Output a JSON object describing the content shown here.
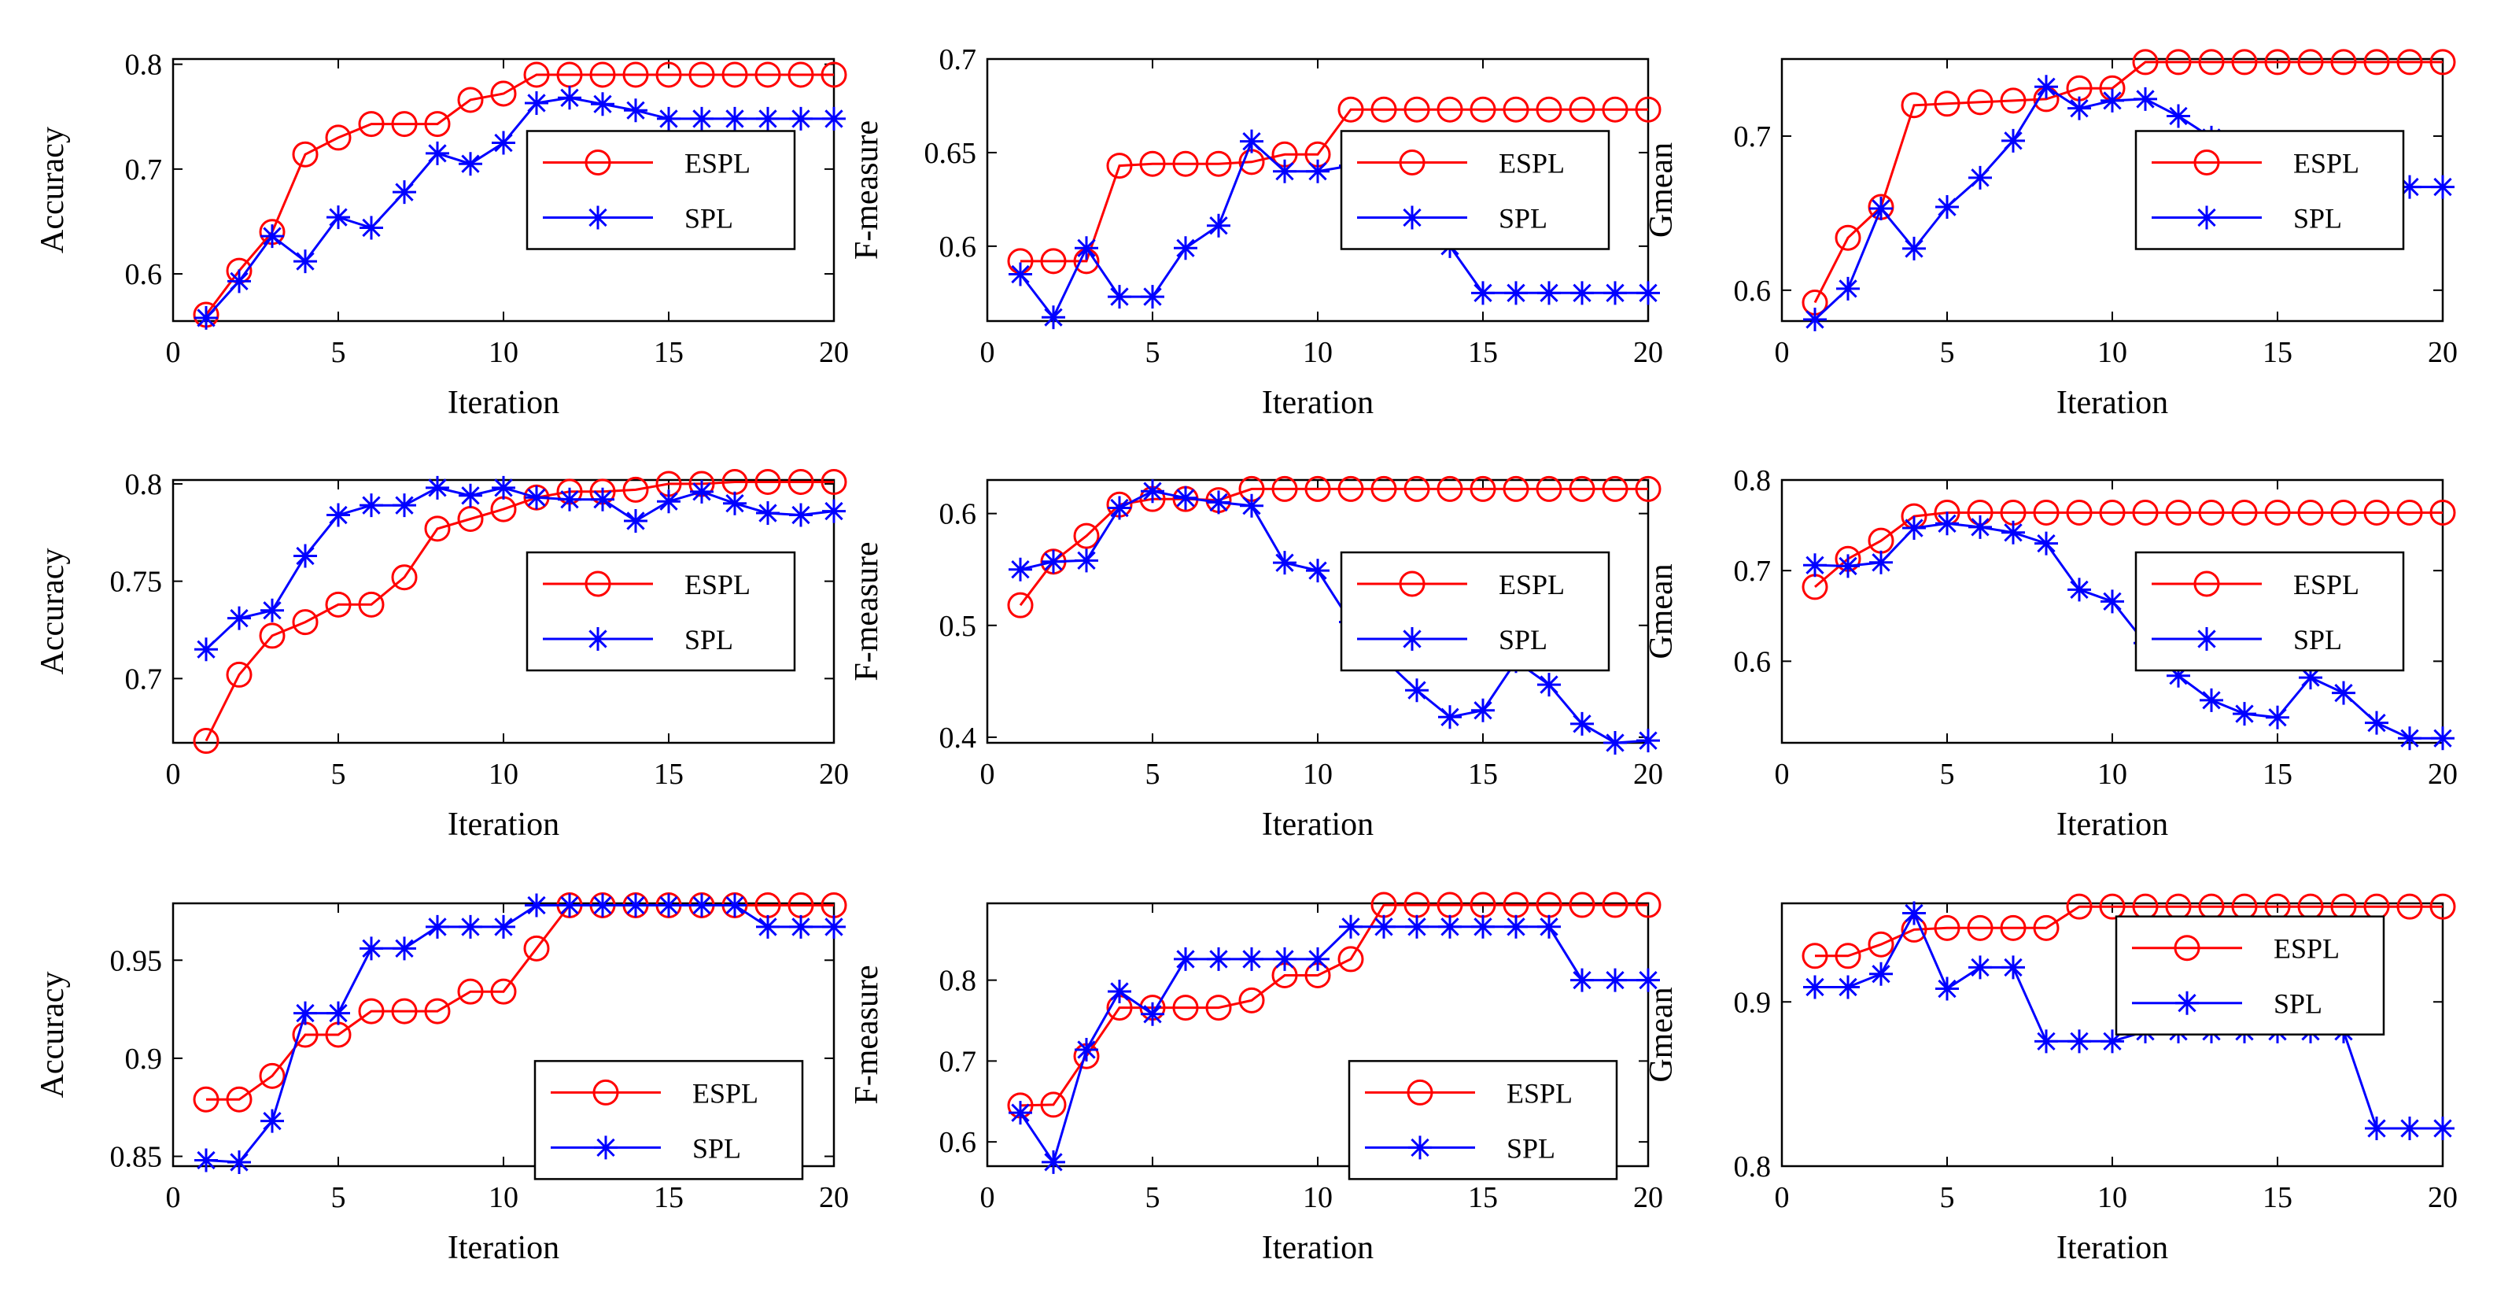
{
  "colors": {
    "espl": "#ff0000",
    "spl": "#0000ff",
    "axis": "#000000"
  },
  "chart_data": [
    {
      "type": "line",
      "row": 1,
      "col": 1,
      "xlabel": "Iteration",
      "ylabel": "Accuracy",
      "xlim": [
        0,
        20
      ],
      "ylim": [
        0.555,
        0.805
      ],
      "xticks": [
        "0",
        "5",
        "10",
        "15",
        "20"
      ],
      "yticks": [
        "0.6",
        "0.7",
        "0.8"
      ],
      "xtick_values": [
        0,
        5,
        10,
        15,
        20
      ],
      "ytick_values": [
        0.6,
        0.7,
        0.8
      ],
      "legend": "center-right",
      "x": [
        1,
        2,
        3,
        4,
        5,
        6,
        7,
        8,
        9,
        10,
        11,
        12,
        13,
        14,
        15,
        16,
        17,
        18,
        19,
        20
      ],
      "series": [
        {
          "name": "ESPL",
          "marker": "circle",
          "values": [
            0.561,
            0.603,
            0.64,
            0.714,
            0.73,
            0.743,
            0.743,
            0.743,
            0.766,
            0.772,
            0.79,
            0.79,
            0.79,
            0.79,
            0.79,
            0.79,
            0.79,
            0.79,
            0.79,
            0.79
          ]
        },
        {
          "name": "SPL",
          "marker": "star",
          "values": [
            0.558,
            0.593,
            0.636,
            0.612,
            0.654,
            0.644,
            0.678,
            0.715,
            0.705,
            0.725,
            0.763,
            0.768,
            0.762,
            0.756,
            0.748,
            0.748,
            0.748,
            0.748,
            0.748,
            0.748
          ]
        }
      ]
    },
    {
      "type": "line",
      "row": 1,
      "col": 2,
      "xlabel": "Iteration",
      "ylabel": "F-measure",
      "xlim": [
        0,
        20
      ],
      "ylim": [
        0.56,
        0.7
      ],
      "xticks": [
        "0",
        "5",
        "10",
        "15",
        "20"
      ],
      "yticks": [
        "0.6",
        "0.65",
        "0.7"
      ],
      "xtick_values": [
        0,
        5,
        10,
        15,
        20
      ],
      "ytick_values": [
        0.6,
        0.65,
        0.7
      ],
      "legend": "center-right",
      "x": [
        1,
        2,
        3,
        4,
        5,
        6,
        7,
        8,
        9,
        10,
        11,
        12,
        13,
        14,
        15,
        16,
        17,
        18,
        19,
        20
      ],
      "series": [
        {
          "name": "ESPL",
          "marker": "circle",
          "values": [
            0.592,
            0.592,
            0.592,
            0.643,
            0.644,
            0.644,
            0.644,
            0.645,
            0.649,
            0.649,
            0.673,
            0.673,
            0.673,
            0.673,
            0.673,
            0.673,
            0.673,
            0.673,
            0.673,
            0.673
          ]
        },
        {
          "name": "SPL",
          "marker": "star",
          "values": [
            0.585,
            0.562,
            0.599,
            0.573,
            0.573,
            0.599,
            0.611,
            0.656,
            0.64,
            0.64,
            0.643,
            0.63,
            0.623,
            0.6,
            0.575,
            0.575,
            0.575,
            0.575,
            0.575,
            0.575
          ]
        }
      ]
    },
    {
      "type": "line",
      "row": 1,
      "col": 3,
      "xlabel": "Iteration",
      "ylabel": "Gmean",
      "xlim": [
        0,
        20
      ],
      "ylim": [
        0.58,
        0.75
      ],
      "xticks": [
        "0",
        "5",
        "10",
        "15",
        "20"
      ],
      "yticks": [
        "0.6",
        "0.7"
      ],
      "xtick_values": [
        0,
        5,
        10,
        15,
        20
      ],
      "ytick_values": [
        0.6,
        0.7
      ],
      "legend": "center-right",
      "x": [
        1,
        2,
        3,
        4,
        5,
        6,
        7,
        8,
        9,
        10,
        11,
        12,
        13,
        14,
        15,
        16,
        17,
        18,
        19,
        20
      ],
      "series": [
        {
          "name": "ESPL",
          "marker": "circle",
          "values": [
            0.592,
            0.634,
            0.654,
            0.72,
            0.721,
            0.722,
            0.723,
            0.724,
            0.731,
            0.731,
            0.748,
            0.748,
            0.748,
            0.748,
            0.748,
            0.748,
            0.748,
            0.748,
            0.748,
            0.748
          ]
        },
        {
          "name": "SPL",
          "marker": "star",
          "values": [
            0.581,
            0.601,
            0.653,
            0.627,
            0.654,
            0.673,
            0.697,
            0.732,
            0.718,
            0.723,
            0.724,
            0.713,
            0.699,
            0.691,
            0.667,
            0.667,
            0.667,
            0.667,
            0.667,
            0.667
          ]
        }
      ]
    },
    {
      "type": "line",
      "row": 2,
      "col": 1,
      "xlabel": "Iteration",
      "ylabel": "Accuracy",
      "xlim": [
        0,
        20
      ],
      "ylim": [
        0.667,
        0.802
      ],
      "xticks": [
        "0",
        "5",
        "10",
        "15",
        "20"
      ],
      "yticks": [
        "0.7",
        "0.75",
        "0.8"
      ],
      "xtick_values": [
        0,
        5,
        10,
        15,
        20
      ],
      "ytick_values": [
        0.7,
        0.75,
        0.8
      ],
      "legend": "center-right",
      "x": [
        1,
        2,
        3,
        4,
        5,
        6,
        7,
        8,
        9,
        10,
        11,
        12,
        13,
        14,
        15,
        16,
        17,
        18,
        19,
        20
      ],
      "series": [
        {
          "name": "ESPL",
          "marker": "circle",
          "values": [
            0.668,
            0.702,
            0.722,
            0.729,
            0.738,
            0.738,
            0.752,
            0.777,
            0.782,
            0.787,
            0.793,
            0.796,
            0.796,
            0.797,
            0.8,
            0.8,
            0.801,
            0.801,
            0.801,
            0.801
          ]
        },
        {
          "name": "SPL",
          "marker": "star",
          "values": [
            0.715,
            0.731,
            0.735,
            0.763,
            0.784,
            0.789,
            0.789,
            0.798,
            0.794,
            0.798,
            0.793,
            0.792,
            0.792,
            0.781,
            0.791,
            0.796,
            0.79,
            0.785,
            0.784,
            0.786
          ]
        }
      ]
    },
    {
      "type": "line",
      "row": 2,
      "col": 2,
      "xlabel": "Iteration",
      "ylabel": "F-measure",
      "xlim": [
        0,
        20
      ],
      "ylim": [
        0.395,
        0.63
      ],
      "xticks": [
        "0",
        "5",
        "10",
        "15",
        "20"
      ],
      "yticks": [
        "0.4",
        "0.5",
        "0.6"
      ],
      "xtick_values": [
        0,
        5,
        10,
        15,
        20
      ],
      "ytick_values": [
        0.4,
        0.5,
        0.6
      ],
      "legend": "center-right",
      "x": [
        1,
        2,
        3,
        4,
        5,
        6,
        7,
        8,
        9,
        10,
        11,
        12,
        13,
        14,
        15,
        16,
        17,
        18,
        19,
        20
      ],
      "series": [
        {
          "name": "ESPL",
          "marker": "circle",
          "values": [
            0.518,
            0.557,
            0.58,
            0.608,
            0.613,
            0.613,
            0.612,
            0.622,
            0.622,
            0.622,
            0.622,
            0.622,
            0.622,
            0.622,
            0.622,
            0.622,
            0.622,
            0.622,
            0.622,
            0.622
          ]
        },
        {
          "name": "SPL",
          "marker": "star",
          "values": [
            0.55,
            0.557,
            0.558,
            0.605,
            0.62,
            0.614,
            0.61,
            0.607,
            0.556,
            0.549,
            0.503,
            0.47,
            0.442,
            0.418,
            0.424,
            0.468,
            0.447,
            0.412,
            0.395,
            0.397
          ]
        }
      ]
    },
    {
      "type": "line",
      "row": 2,
      "col": 3,
      "xlabel": "Iteration",
      "ylabel": "Gmean",
      "xlim": [
        0,
        20
      ],
      "ylim": [
        0.51,
        0.8
      ],
      "xticks": [
        "0",
        "5",
        "10",
        "15",
        "20"
      ],
      "yticks": [
        "0.6",
        "0.7",
        "0.8"
      ],
      "xtick_values": [
        0,
        5,
        10,
        15,
        20
      ],
      "ytick_values": [
        0.6,
        0.7,
        0.8
      ],
      "legend": "center-right",
      "x": [
        1,
        2,
        3,
        4,
        5,
        6,
        7,
        8,
        9,
        10,
        11,
        12,
        13,
        14,
        15,
        16,
        17,
        18,
        19,
        20
      ],
      "series": [
        {
          "name": "ESPL",
          "marker": "circle",
          "values": [
            0.682,
            0.713,
            0.733,
            0.76,
            0.764,
            0.764,
            0.764,
            0.764,
            0.764,
            0.764,
            0.764,
            0.764,
            0.764,
            0.764,
            0.764,
            0.764,
            0.764,
            0.764,
            0.764,
            0.764
          ]
        },
        {
          "name": "SPL",
          "marker": "star",
          "values": [
            0.706,
            0.705,
            0.709,
            0.747,
            0.752,
            0.748,
            0.742,
            0.73,
            0.679,
            0.666,
            0.62,
            0.584,
            0.557,
            0.542,
            0.538,
            0.582,
            0.565,
            0.532,
            0.515,
            0.515
          ]
        }
      ]
    },
    {
      "type": "line",
      "row": 3,
      "col": 1,
      "xlabel": "Iteration",
      "ylabel": "Accuracy",
      "xlim": [
        0,
        20
      ],
      "ylim": [
        0.845,
        0.979
      ],
      "xticks": [
        "0",
        "5",
        "10",
        "15",
        "20"
      ],
      "yticks": [
        "0.85",
        "0.9",
        "0.95"
      ],
      "xtick_values": [
        0,
        5,
        10,
        15,
        20
      ],
      "ytick_values": [
        0.85,
        0.9,
        0.95
      ],
      "legend": "lower-right",
      "x": [
        1,
        2,
        3,
        4,
        5,
        6,
        7,
        8,
        9,
        10,
        11,
        12,
        13,
        14,
        15,
        16,
        17,
        18,
        19,
        20
      ],
      "series": [
        {
          "name": "ESPL",
          "marker": "circle",
          "values": [
            0.879,
            0.879,
            0.891,
            0.912,
            0.912,
            0.924,
            0.924,
            0.924,
            0.934,
            0.934,
            0.956,
            0.978,
            0.978,
            0.978,
            0.978,
            0.978,
            0.978,
            0.978,
            0.978,
            0.978
          ]
        },
        {
          "name": "SPL",
          "marker": "star",
          "values": [
            0.848,
            0.847,
            0.868,
            0.923,
            0.923,
            0.956,
            0.956,
            0.967,
            0.967,
            0.967,
            0.978,
            0.978,
            0.978,
            0.978,
            0.978,
            0.978,
            0.978,
            0.967,
            0.967,
            0.967
          ]
        }
      ]
    },
    {
      "type": "line",
      "row": 3,
      "col": 2,
      "xlabel": "Iteration",
      "ylabel": "F-measure",
      "xlim": [
        0,
        20
      ],
      "ylim": [
        0.57,
        0.895
      ],
      "xticks": [
        "0",
        "5",
        "10",
        "15",
        "20"
      ],
      "yticks": [
        "0.6",
        "0.7",
        "0.8"
      ],
      "xtick_values": [
        0,
        5,
        10,
        15,
        20
      ],
      "ytick_values": [
        0.6,
        0.7,
        0.8
      ],
      "legend": "lower-right",
      "x": [
        1,
        2,
        3,
        4,
        5,
        6,
        7,
        8,
        9,
        10,
        11,
        12,
        13,
        14,
        15,
        16,
        17,
        18,
        19,
        20
      ],
      "series": [
        {
          "name": "ESPL",
          "marker": "circle",
          "values": [
            0.645,
            0.646,
            0.706,
            0.766,
            0.766,
            0.766,
            0.766,
            0.775,
            0.806,
            0.806,
            0.826,
            0.893,
            0.893,
            0.893,
            0.893,
            0.893,
            0.893,
            0.893,
            0.893,
            0.893
          ]
        },
        {
          "name": "SPL",
          "marker": "star",
          "values": [
            0.636,
            0.575,
            0.714,
            0.786,
            0.758,
            0.826,
            0.826,
            0.826,
            0.826,
            0.826,
            0.866,
            0.866,
            0.866,
            0.866,
            0.866,
            0.866,
            0.866,
            0.8,
            0.8,
            0.8
          ]
        }
      ]
    },
    {
      "type": "line",
      "row": 3,
      "col": 3,
      "xlabel": "Iteration",
      "ylabel": "Gmean",
      "xlim": [
        0,
        20
      ],
      "ylim": [
        0.8,
        0.96
      ],
      "xticks": [
        "0",
        "5",
        "10",
        "15",
        "20"
      ],
      "yticks": [
        "0.8",
        "0.9"
      ],
      "xtick_values": [
        0,
        5,
        10,
        15,
        20
      ],
      "ytick_values": [
        0.8,
        0.9
      ],
      "legend": "top-right",
      "x": [
        1,
        2,
        3,
        4,
        5,
        6,
        7,
        8,
        9,
        10,
        11,
        12,
        13,
        14,
        15,
        16,
        17,
        18,
        19,
        20
      ],
      "series": [
        {
          "name": "ESPL",
          "marker": "circle",
          "values": [
            0.928,
            0.928,
            0.935,
            0.944,
            0.945,
            0.945,
            0.945,
            0.945,
            0.958,
            0.958,
            0.958,
            0.958,
            0.958,
            0.958,
            0.958,
            0.958,
            0.958,
            0.958,
            0.958,
            0.958
          ]
        },
        {
          "name": "SPL",
          "marker": "star",
          "values": [
            0.909,
            0.909,
            0.917,
            0.954,
            0.908,
            0.921,
            0.921,
            0.876,
            0.876,
            0.876,
            0.882,
            0.882,
            0.882,
            0.882,
            0.882,
            0.882,
            0.882,
            0.823,
            0.823,
            0.823
          ]
        }
      ]
    }
  ]
}
